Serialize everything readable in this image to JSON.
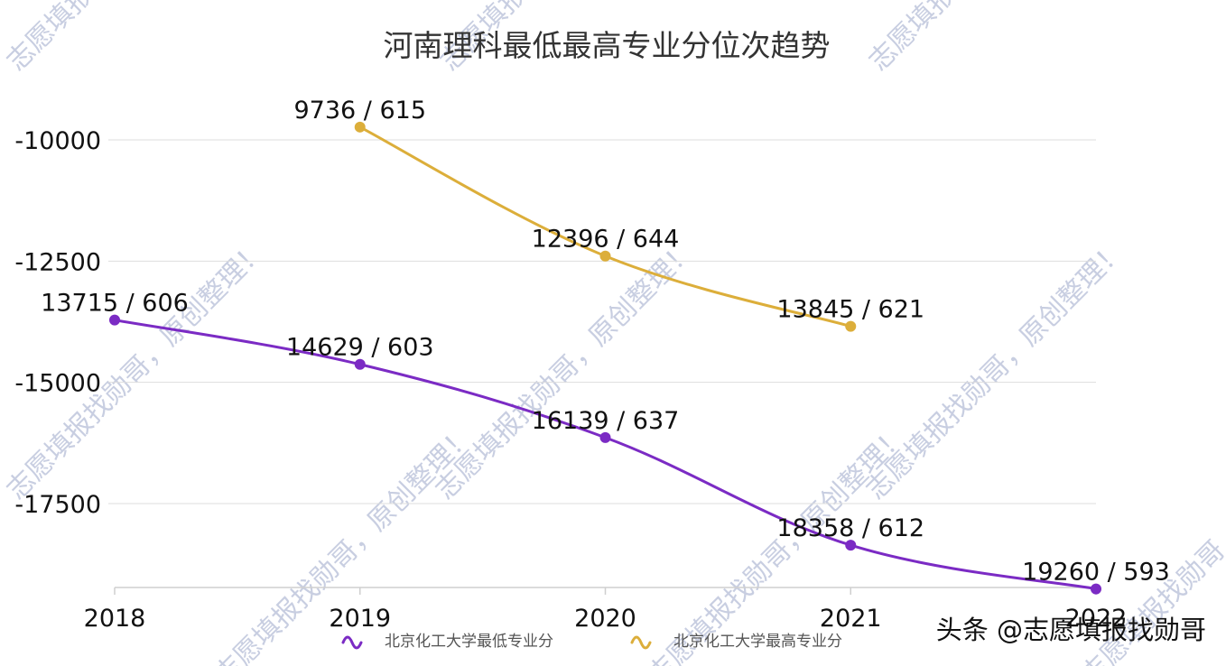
{
  "chart_data": {
    "type": "line",
    "title": "河南理科最低最高专业分位次趋势",
    "xlabel": "",
    "ylabel": "",
    "categories": [
      "2018",
      "2019",
      "2020",
      "2021",
      "2022"
    ],
    "y_ticks": [
      "-10000",
      "-12500",
      "-15000",
      "-17500"
    ],
    "ylim": [
      -19800,
      -9000
    ],
    "grid": true,
    "legend_position": "bottom",
    "series": [
      {
        "name": "北京化工大学最低专业分",
        "color": "#7b2bc4",
        "values": [
          -13715,
          -14629,
          -16139,
          -18358,
          -19260
        ],
        "labels": [
          "13715 / 606",
          "14629 / 603",
          "16139 / 637",
          "18358 / 612",
          "19260 / 593"
        ]
      },
      {
        "name": "北京化工大学最高专业分",
        "color": "#dcae3a",
        "values": [
          null,
          -9736,
          -12396,
          -13845,
          null
        ],
        "labels": [
          null,
          "9736 / 615",
          "12396 / 644",
          "13845 / 621",
          null
        ]
      }
    ]
  },
  "credit": "头条 @志愿填报找勋哥",
  "watermark": "志愿填报找勋哥，原创整理！"
}
